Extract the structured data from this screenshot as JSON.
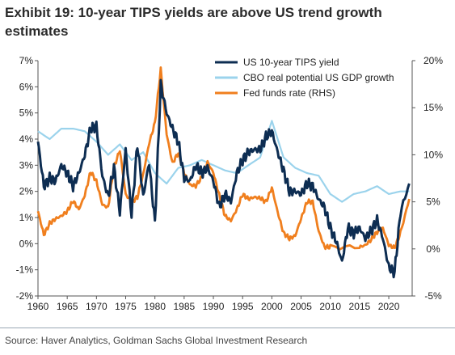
{
  "title": "Exhibit 19: 10-year TIPS yields are above US trend growth estimates",
  "source": "Source: Haver Analytics, Goldman Sachs Global Investment Research",
  "chart_data": {
    "type": "line",
    "x_ticks": [
      "1960",
      "1965",
      "1970",
      "1975",
      "1980",
      "1985",
      "1990",
      "1995",
      "2000",
      "2005",
      "2010",
      "2015",
      "2020"
    ],
    "y_left_ticks": [
      "7%",
      "6%",
      "5%",
      "4%",
      "3%",
      "2%",
      "1%",
      "0%",
      "-1%",
      "-2%"
    ],
    "y_right_ticks": [
      "20%",
      "15%",
      "10%",
      "5%",
      "0%",
      "-5%"
    ],
    "ylim_left": [
      -2,
      7
    ],
    "ylim_right": [
      -5,
      20
    ],
    "xlim": [
      1960,
      2024
    ],
    "legend_position": "top-right",
    "series": [
      {
        "name": "US 10-year TIPS yield",
        "axis": "left",
        "color": "#0d2d52",
        "x": [
          1960,
          1961,
          1962,
          1963,
          1964,
          1965,
          1966,
          1967,
          1968,
          1969,
          1970,
          1971,
          1972,
          1973,
          1974,
          1975,
          1976,
          1977,
          1978,
          1979,
          1980,
          1981,
          1982,
          1983,
          1984,
          1985,
          1986,
          1987,
          1988,
          1989,
          1990,
          1991,
          1992,
          1993,
          1994,
          1995,
          1996,
          1997,
          1998,
          1999,
          2000,
          2001,
          2002,
          2003,
          2004,
          2005,
          2006,
          2007,
          2008,
          2009,
          2010,
          2011,
          2012,
          2013,
          2014,
          2015,
          2016,
          2017,
          2018,
          2019,
          2020,
          2021,
          2022,
          2023.5
        ],
        "y": [
          3.9,
          2.2,
          2.5,
          2.4,
          3.0,
          2.7,
          2.2,
          2.7,
          3.4,
          4.4,
          4.5,
          2.6,
          1.8,
          2.9,
          1.2,
          3.6,
          1.1,
          3.8,
          1.8,
          3.1,
          0.8,
          6.1,
          5.0,
          4.4,
          3.9,
          2.5,
          2.4,
          3.0,
          2.7,
          2.9,
          2.4,
          1.4,
          1.9,
          1.6,
          2.7,
          3.2,
          3.5,
          3.6,
          3.6,
          4.1,
          4.3,
          3.5,
          2.8,
          2.0,
          2.0,
          1.9,
          2.3,
          2.2,
          1.7,
          1.4,
          0.6,
          0.1,
          -0.7,
          0.6,
          0.4,
          0.6,
          0.2,
          0.5,
          0.9,
          0.2,
          -0.9,
          -1.1,
          1.2,
          2.3
        ]
      },
      {
        "name": "CBO real potential US GDP growth",
        "axis": "left",
        "color": "#9bd3ec",
        "x": [
          1960,
          1962,
          1964,
          1966,
          1968,
          1970,
          1972,
          1974,
          1976,
          1978,
          1980,
          1982,
          1984,
          1986,
          1988,
          1990,
          1992,
          1994,
          1996,
          1998,
          2000,
          2002,
          2004,
          2006,
          2008,
          2010,
          2012,
          2014,
          2016,
          2018,
          2020,
          2022,
          2023.5
        ],
        "y": [
          4.3,
          4.0,
          4.4,
          4.4,
          4.3,
          3.9,
          3.4,
          3.8,
          3.2,
          3.5,
          2.7,
          2.3,
          2.9,
          3.0,
          3.2,
          3.0,
          2.8,
          2.7,
          3.0,
          3.3,
          4.7,
          3.3,
          2.9,
          2.7,
          2.6,
          1.9,
          1.6,
          1.9,
          2.0,
          2.2,
          1.9,
          2.0,
          2.0
        ]
      },
      {
        "name": "Fed funds rate (RHS)",
        "axis": "right",
        "color": "#f07f1e",
        "x": [
          1960,
          1961,
          1962,
          1963,
          1964,
          1965,
          1966,
          1967,
          1968,
          1969,
          1970,
          1971,
          1972,
          1973,
          1974,
          1975,
          1976,
          1977,
          1978,
          1979,
          1980,
          1981,
          1982,
          1983,
          1984,
          1985,
          1986,
          1987,
          1988,
          1989,
          1990,
          1991,
          1992,
          1993,
          1994,
          1995,
          1996,
          1997,
          1998,
          1999,
          2000,
          2001,
          2002,
          2003,
          2004,
          2005,
          2006,
          2007,
          2008,
          2009,
          2010,
          2015,
          2016,
          2017,
          2018,
          2019,
          2020,
          2021,
          2022,
          2023.5
        ],
        "y": [
          4.0,
          1.5,
          2.7,
          3.2,
          3.5,
          4.0,
          5.1,
          4.2,
          5.7,
          8.2,
          7.2,
          4.7,
          4.4,
          8.7,
          10.5,
          5.8,
          5.0,
          5.5,
          7.9,
          11.2,
          13.4,
          19.1,
          12.2,
          9.1,
          10.2,
          8.1,
          6.8,
          6.7,
          7.6,
          9.2,
          8.1,
          5.7,
          3.5,
          3.0,
          4.2,
          5.8,
          5.3,
          5.5,
          5.4,
          5.0,
          6.5,
          3.9,
          1.7,
          1.1,
          1.4,
          3.2,
          5.0,
          5.0,
          1.9,
          0.2,
          0.2,
          0.2,
          0.4,
          1.0,
          1.8,
          2.2,
          0.4,
          0.1,
          1.7,
          5.3
        ]
      }
    ]
  }
}
